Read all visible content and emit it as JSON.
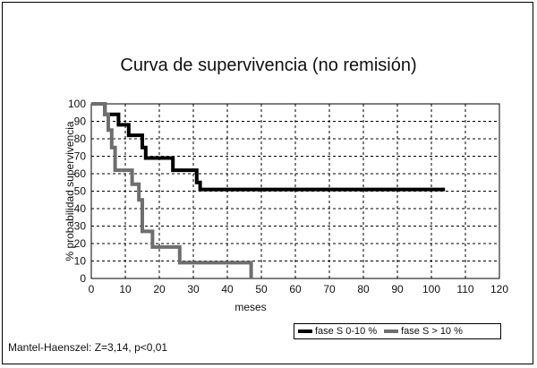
{
  "chart_data": {
    "type": "line",
    "title": "Curva de supervivencia (no remisión)",
    "xlabel": "meses",
    "ylabel": "% probabilidad supervivencia",
    "xlim": [
      0,
      120
    ],
    "ylim": [
      0,
      100
    ],
    "xticks": [
      0,
      10,
      20,
      30,
      40,
      50,
      60,
      70,
      80,
      90,
      100,
      110,
      120
    ],
    "yticks": [
      0,
      10,
      20,
      30,
      40,
      50,
      60,
      70,
      80,
      90,
      100
    ],
    "grid": true,
    "legend_position": "bottom-right",
    "series": [
      {
        "name": "fase S 0-10 %",
        "color": "#000000",
        "step_points": [
          [
            0,
            100
          ],
          [
            4,
            100
          ],
          [
            4,
            94
          ],
          [
            8,
            94
          ],
          [
            8,
            88
          ],
          [
            11,
            88
          ],
          [
            11,
            82
          ],
          [
            15,
            82
          ],
          [
            15,
            75
          ],
          [
            16,
            75
          ],
          [
            16,
            69
          ],
          [
            24,
            69
          ],
          [
            24,
            62
          ],
          [
            31,
            62
          ],
          [
            31,
            55
          ],
          [
            32,
            55
          ],
          [
            32,
            51
          ],
          [
            104,
            51
          ]
        ]
      },
      {
        "name": "fase S > 10 %",
        "color": "#6e6e6e",
        "step_points": [
          [
            0,
            100
          ],
          [
            4,
            100
          ],
          [
            4,
            94
          ],
          [
            5,
            94
          ],
          [
            5,
            85
          ],
          [
            6,
            85
          ],
          [
            6,
            75
          ],
          [
            7,
            75
          ],
          [
            7,
            62
          ],
          [
            12,
            62
          ],
          [
            12,
            54
          ],
          [
            14,
            54
          ],
          [
            14,
            45
          ],
          [
            15,
            45
          ],
          [
            15,
            27
          ],
          [
            18,
            27
          ],
          [
            18,
            18
          ],
          [
            26,
            18
          ],
          [
            26,
            9
          ],
          [
            47,
            9
          ],
          [
            47,
            0
          ]
        ]
      }
    ]
  },
  "annotation": "Mantel-Haenszel: Z=3,14, p<0,01"
}
